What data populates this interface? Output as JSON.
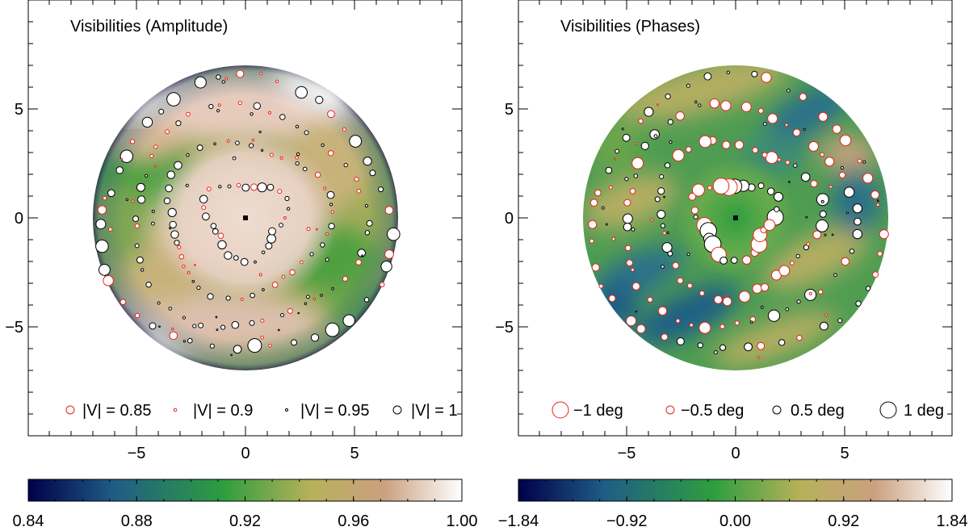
{
  "colormap": [
    "#00004a",
    "#1f5d86",
    "#2d9e3e",
    "#b7b159",
    "#caa07f",
    "#ffffff"
  ],
  "marker_colors": {
    "negative": "#e8231b",
    "positive": "#000000",
    "center": "#000000"
  },
  "chart_data": [
    {
      "type": "scatter",
      "title": "Visibilities (Amplitude)",
      "xlim": [
        -10,
        10
      ],
      "ylim": [
        -10,
        10
      ],
      "xticks": [
        -5,
        0,
        5
      ],
      "yticks": [
        -5,
        0,
        5
      ],
      "xtick_labels": [
        "−5",
        "0",
        "5"
      ],
      "ytick_labels": [
        "−5",
        "0",
        "5"
      ],
      "disk_radius": 7,
      "background": "interpolated visibility amplitude map within uv-coverage disk",
      "colorbar": {
        "min": 0.84,
        "max": 1.0,
        "tick_labels": [
          "0.84",
          "0.88",
          "0.92",
          "0.96",
          "1.00"
        ]
      },
      "legend": [
        {
          "label": "|V| = 0.85",
          "color": "red"
        },
        {
          "label": "|V| = 0.9",
          "color": "red"
        },
        {
          "label": "|V| = 0.95",
          "color": "black"
        },
        {
          "label": "|V| = 1",
          "color": "black"
        }
      ],
      "point_rings": [
        {
          "radius": 1.8,
          "count": 28,
          "note": "inner ring, amplitude near 1"
        },
        {
          "radius": 3.7,
          "count": 40,
          "note": "middle ring"
        },
        {
          "radius": 5.3,
          "count": 46,
          "note": "outer ring"
        },
        {
          "radius": 6.6,
          "count": 44,
          "note": "edge ring"
        }
      ],
      "center": [
        0,
        0
      ]
    },
    {
      "type": "scatter",
      "title": "Visibilities (Phases)",
      "xlim": [
        -10,
        10
      ],
      "ylim": [
        -10,
        10
      ],
      "xticks": [
        -5,
        0,
        5
      ],
      "yticks": [
        -5,
        0,
        5
      ],
      "xtick_labels": [
        "−5",
        "0",
        "5"
      ],
      "ytick_labels": [
        "−5",
        "0",
        "5"
      ],
      "disk_radius": 7,
      "background": "interpolated visibility phase map within uv-coverage disk",
      "colorbar": {
        "min": -1.84,
        "max": 1.84,
        "tick_labels": [
          "−1.84",
          "−0.92",
          "0.00",
          "0.92",
          "1.84"
        ]
      },
      "legend": [
        {
          "label": "−1 deg",
          "color": "red"
        },
        {
          "label": "−0.5 deg",
          "color": "red"
        },
        {
          "label": "0.5 deg",
          "color": "black"
        },
        {
          "label": "1 deg",
          "color": "black"
        }
      ],
      "point_rings": [
        {
          "radius": 1.8,
          "count": 28,
          "note": "inner ring, large phases"
        },
        {
          "radius": 3.7,
          "count": 40,
          "note": "middle ring"
        },
        {
          "radius": 5.3,
          "count": 46,
          "note": "outer ring"
        },
        {
          "radius": 6.6,
          "count": 44,
          "note": "edge ring"
        }
      ],
      "center": [
        0,
        0
      ]
    }
  ]
}
